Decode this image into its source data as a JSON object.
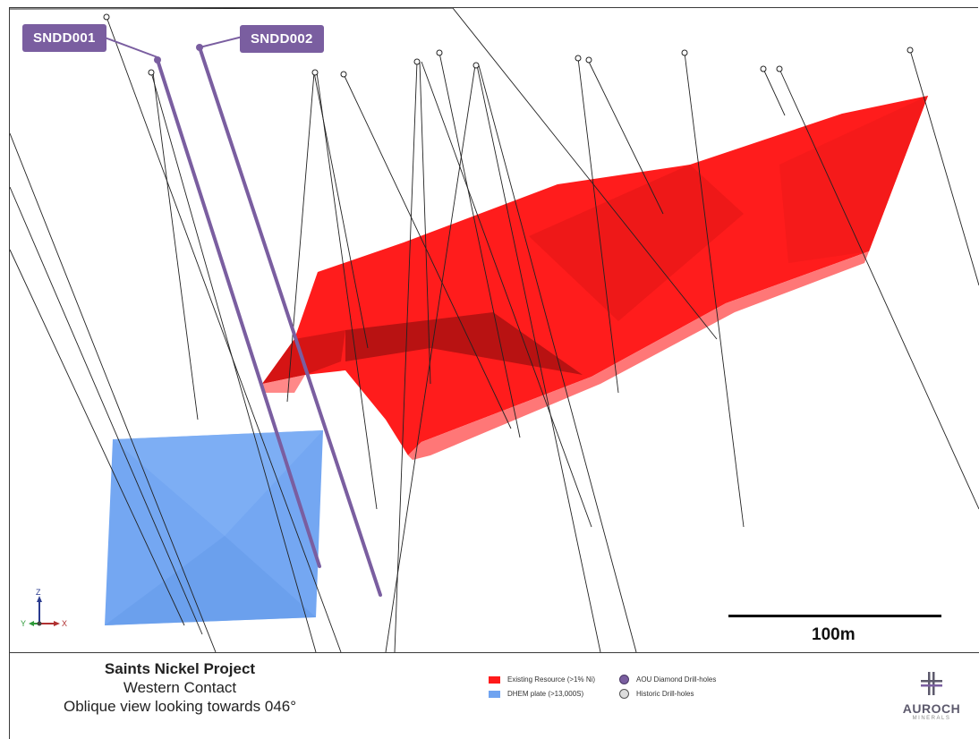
{
  "callouts": {
    "hole1": "SNDD001",
    "hole2": "SNDD002"
  },
  "scale_bar": {
    "label": "100m"
  },
  "axes": {
    "z": "Z",
    "y": "Y",
    "x": "X"
  },
  "title": {
    "line1": "Saints Nickel Project",
    "line2": "Western Contact",
    "line3": "Oblique view looking towards 046°"
  },
  "legend": {
    "resource": "Existing Resource (>1% Ni)",
    "dhem": "DHEM plate (>13,000S)",
    "aou": "AOU Diamond Drill-holes",
    "historic": "Historic Drill-holes"
  },
  "logo": {
    "name": "AUROCH",
    "sub": "MINERALS"
  },
  "colors": {
    "resource": "#ff1a1a",
    "dhem": "#6fa3f0",
    "aou_hole": "#7a5ea0",
    "historic_hole": "#222222"
  }
}
